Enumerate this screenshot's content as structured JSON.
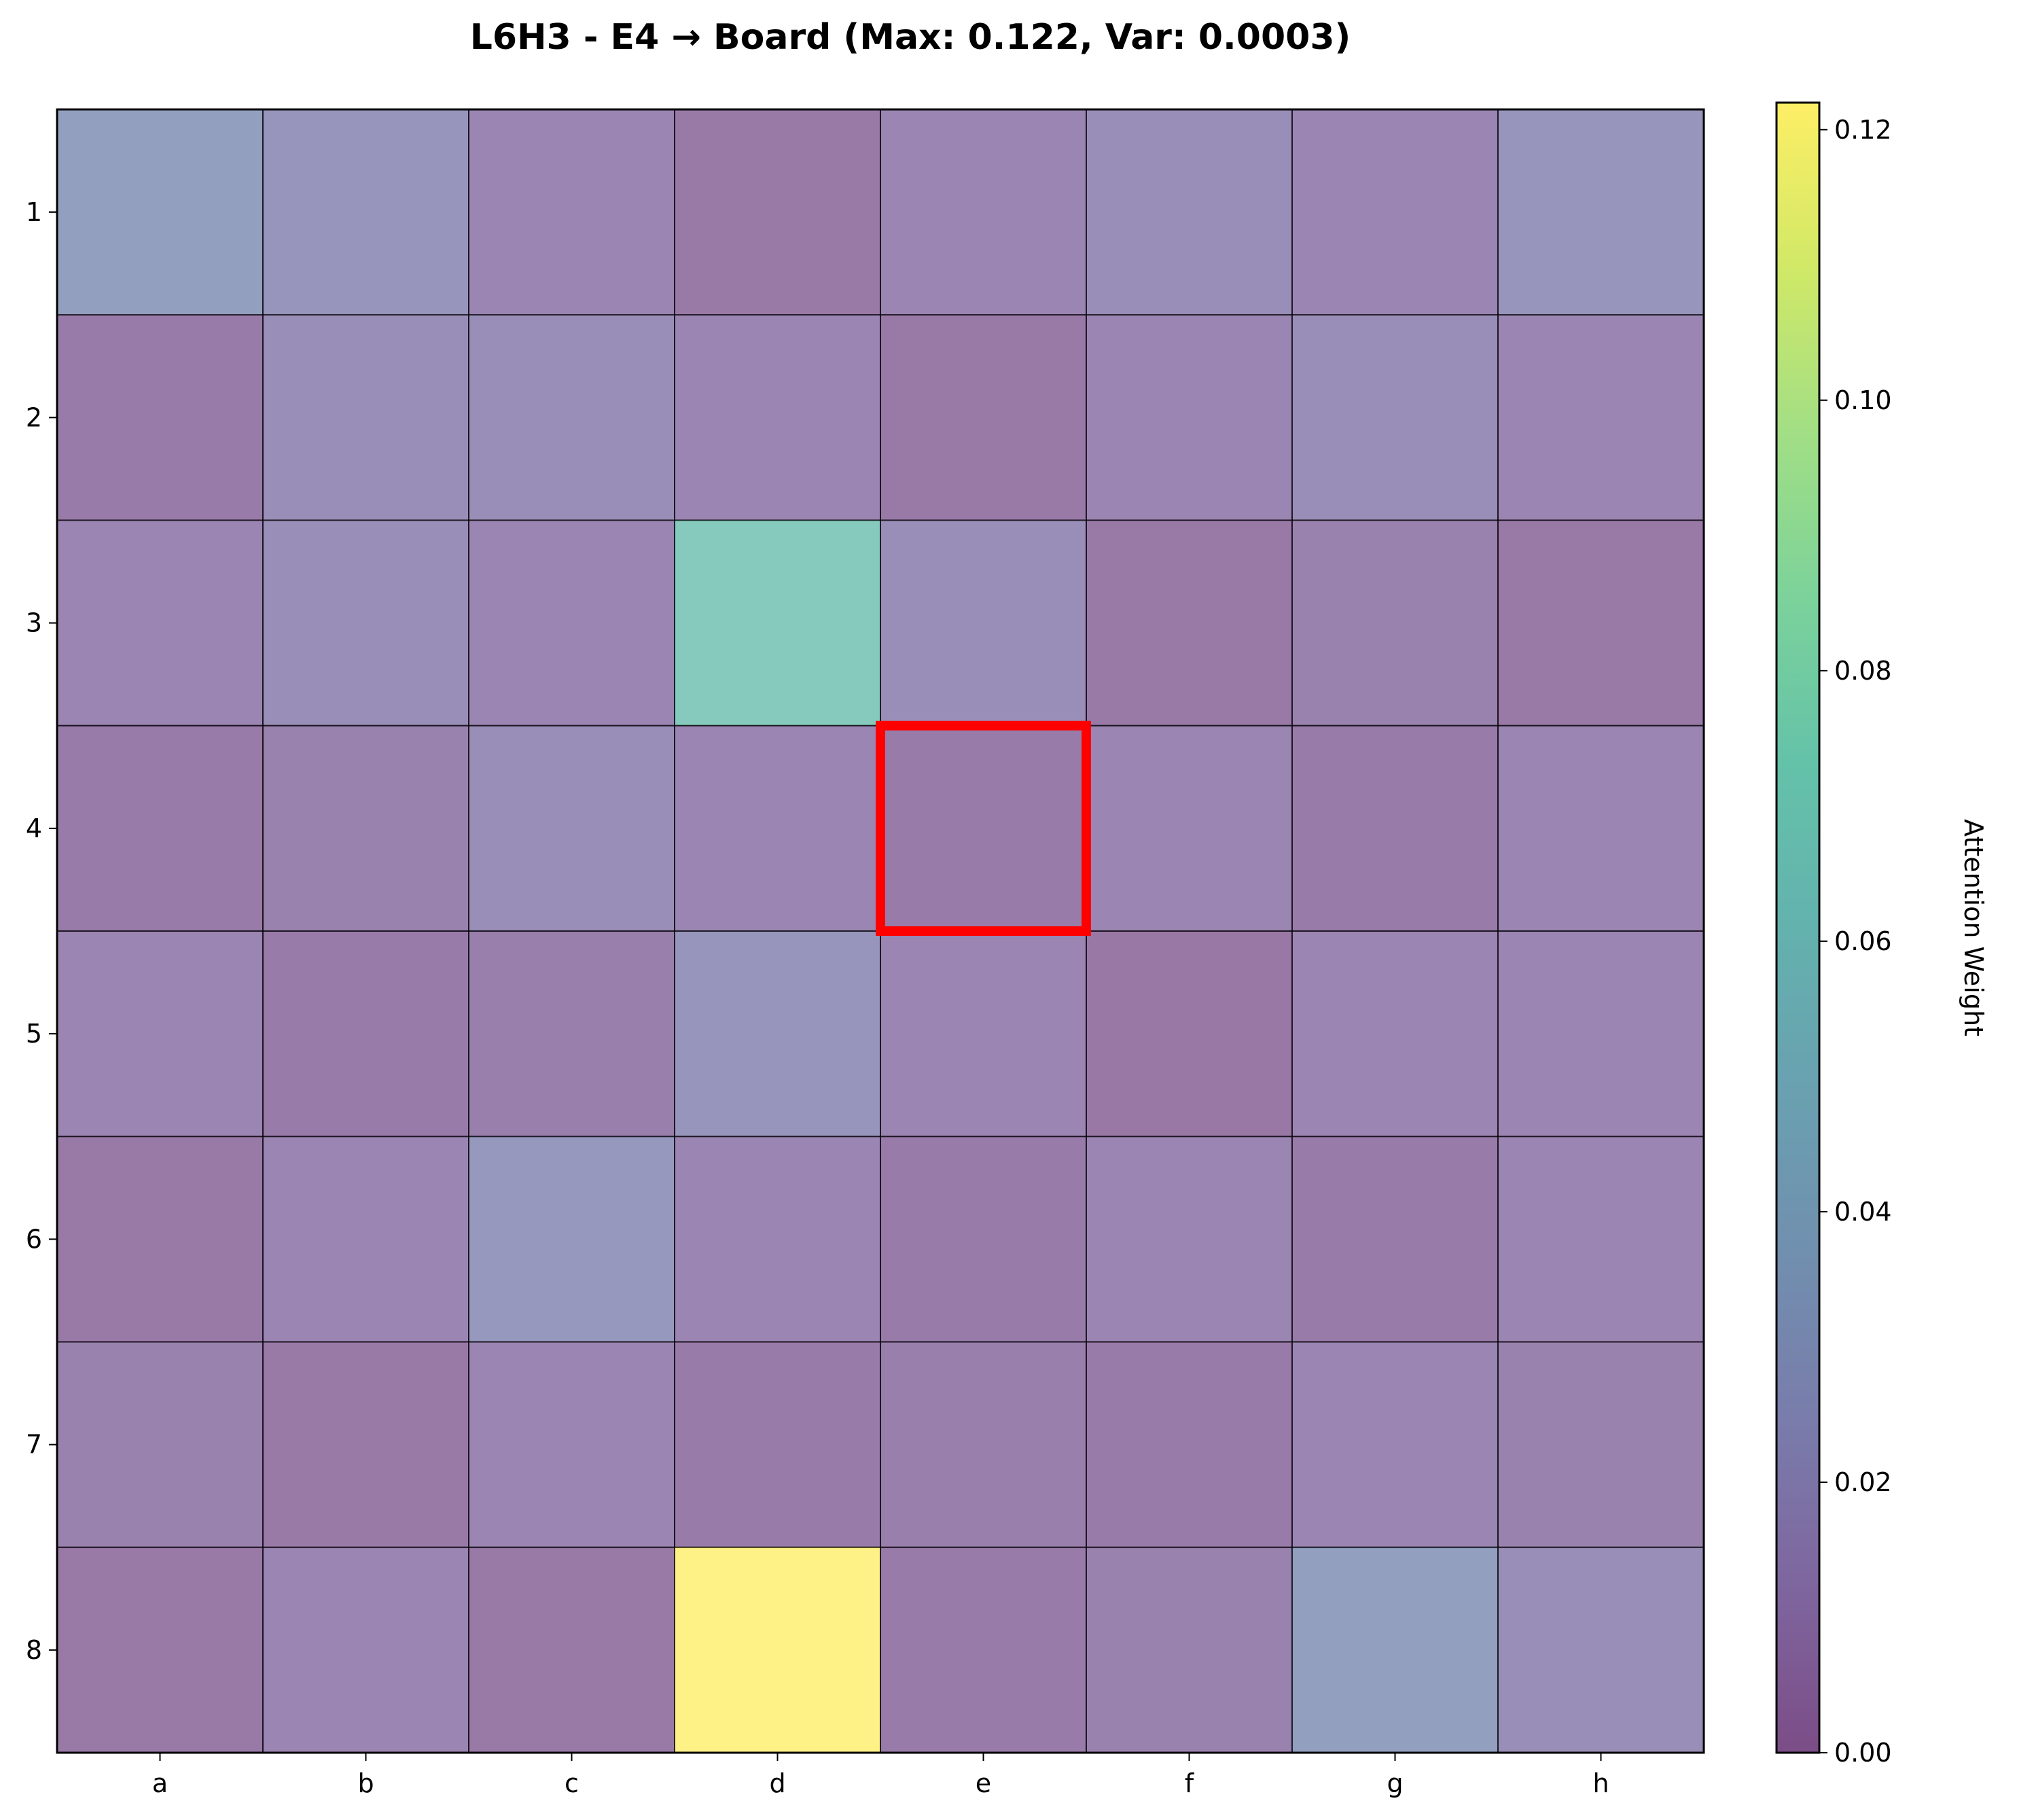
{
  "chart_data": {
    "type": "heatmap",
    "title": "L6H3 - E4 → Board (Max: 0.122, Var: 0.0003)",
    "x_categories": [
      "a",
      "b",
      "c",
      "d",
      "e",
      "f",
      "g",
      "h"
    ],
    "y_categories": [
      "1",
      "2",
      "3",
      "4",
      "5",
      "6",
      "7",
      "8"
    ],
    "values": [
      [
        0.03,
        0.022,
        0.011,
        0.004,
        0.011,
        0.017,
        0.011,
        0.022
      ],
      [
        0.005,
        0.017,
        0.017,
        0.011,
        0.004,
        0.011,
        0.017,
        0.011
      ],
      [
        0.011,
        0.017,
        0.011,
        0.068,
        0.017,
        0.004,
        0.009,
        0.004
      ],
      [
        0.005,
        0.009,
        0.017,
        0.011,
        0.005,
        0.011,
        0.005,
        0.011
      ],
      [
        0.011,
        0.005,
        0.007,
        0.022,
        0.011,
        0.003,
        0.011,
        0.011
      ],
      [
        0.004,
        0.011,
        0.025,
        0.011,
        0.005,
        0.011,
        0.005,
        0.011
      ],
      [
        0.009,
        0.004,
        0.011,
        0.005,
        0.007,
        0.005,
        0.011,
        0.009
      ],
      [
        0.004,
        0.011,
        0.004,
        0.122,
        0.005,
        0.009,
        0.03,
        0.017
      ]
    ],
    "highlight": {
      "column": "e",
      "row": "4",
      "color": "#ff0000"
    },
    "colorbar": {
      "label": "Attention Weight",
      "min": 0,
      "max": 0.122,
      "ticks": [
        "0.00",
        "0.02",
        "0.04",
        "0.06",
        "0.08",
        "0.10",
        "0.12"
      ],
      "colormap": "viridis"
    },
    "grid": true
  }
}
